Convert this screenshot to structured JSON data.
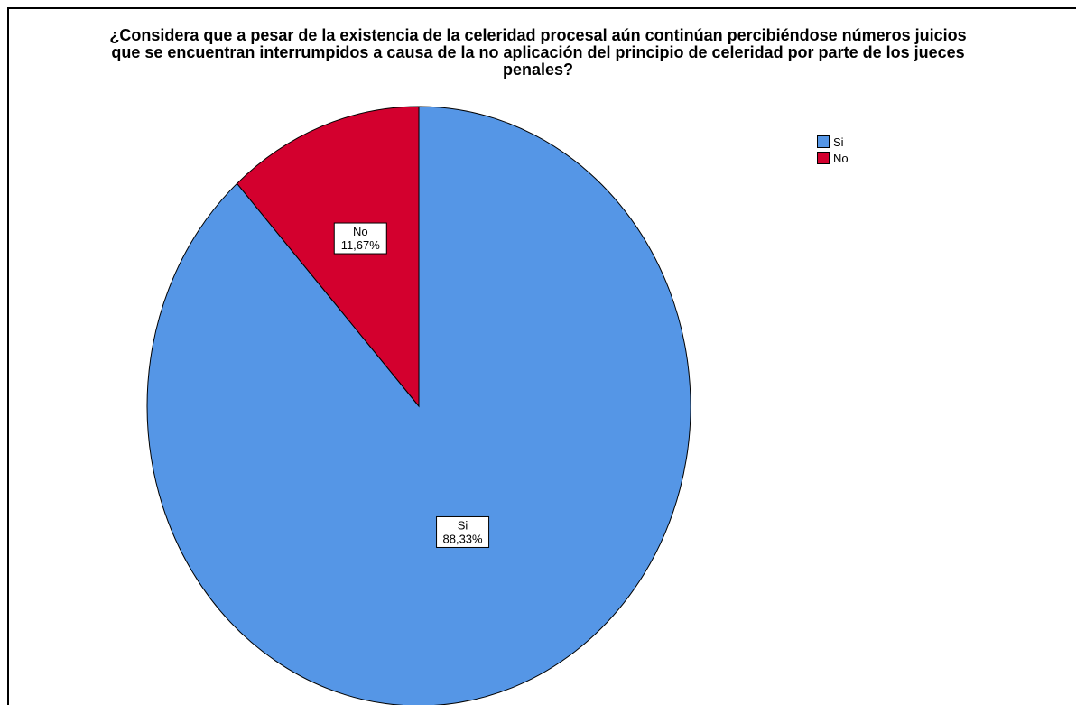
{
  "chart_data": {
    "type": "pie",
    "title_lines": [
      "¿Considera que a pesar de la existencia de la celeridad procesal aún continúan percibiéndose números juicios",
      "que se encuentran interrumpidos a causa de la no aplicación del principio de celeridad por parte de los jueces",
      "penales?"
    ],
    "slices": [
      {
        "label": "Si",
        "percent_label": "88,33%",
        "value": 88.33,
        "color": "#5596E6"
      },
      {
        "label": "No",
        "percent_label": "11,67%",
        "value": 11.67,
        "color": "#D3002E"
      }
    ],
    "start_angle_deg": 0,
    "direction": "clockwise",
    "legend": {
      "position": "top-right",
      "items": [
        "Si",
        "No"
      ]
    }
  }
}
